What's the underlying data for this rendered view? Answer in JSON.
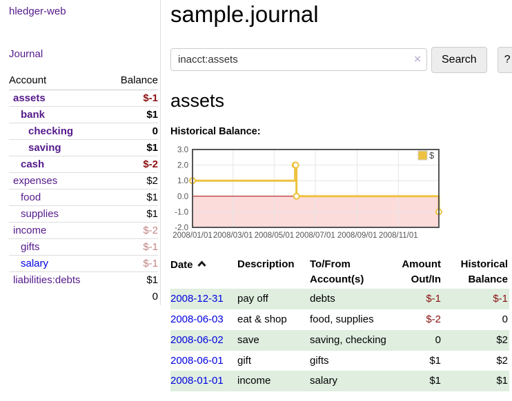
{
  "sidebar": {
    "app_title": "hledger-web",
    "nav": {
      "journal_label": "Journal"
    },
    "accounts_table": {
      "headers": {
        "account": "Account",
        "balance": "Balance"
      },
      "rows": [
        {
          "name": "assets",
          "level": 0,
          "bold": true,
          "balance": "$-1",
          "balance_class": "neg-strong"
        },
        {
          "name": "bank",
          "level": 1,
          "bold": true,
          "balance": "$1",
          "balance_class": "pos"
        },
        {
          "name": "checking",
          "level": 2,
          "bold": true,
          "balance": "0",
          "balance_class": "pos"
        },
        {
          "name": "saving",
          "level": 2,
          "bold": true,
          "balance": "$1",
          "balance_class": "pos"
        },
        {
          "name": "cash",
          "level": 1,
          "bold": true,
          "balance": "$-2",
          "balance_class": "neg-strong"
        },
        {
          "name": "expenses",
          "level": 0,
          "bold": false,
          "balance": "$2",
          "balance_class": "pos"
        },
        {
          "name": "food",
          "level": 1,
          "bold": false,
          "balance": "$1",
          "balance_class": "pos"
        },
        {
          "name": "supplies",
          "level": 1,
          "bold": false,
          "balance": "$1",
          "balance_class": "pos"
        },
        {
          "name": "income",
          "level": 0,
          "bold": false,
          "balance": "$-2",
          "balance_class": "neg-soft"
        },
        {
          "name": "gifts",
          "level": 1,
          "bold": false,
          "balance": "$-1",
          "balance_class": "neg-soft"
        },
        {
          "name": "salary",
          "level": 1,
          "bold": false,
          "balance": "$-1",
          "balance_class": "neg-soft",
          "link_color": "blue"
        },
        {
          "name": "liabilities:debts",
          "level": 0,
          "bold": false,
          "balance": "$1",
          "balance_class": "pos"
        }
      ],
      "total": "0"
    }
  },
  "header": {
    "title": "sample.journal"
  },
  "search": {
    "value": "inacct:assets",
    "clear_icon": "×",
    "search_button": "Search",
    "help_button": "?"
  },
  "main": {
    "account_heading": "assets",
    "chart_heading": "Historical Balance:"
  },
  "chart_data": {
    "type": "line",
    "step": true,
    "title": "Historical Balance",
    "series": [
      {
        "name": "$",
        "color": "#edc240",
        "points": [
          {
            "date": "2008-01-01",
            "day": 0,
            "value": 1
          },
          {
            "date": "2008-06-01",
            "day": 152,
            "value": 2
          },
          {
            "date": "2008-06-02",
            "day": 153,
            "value": 2
          },
          {
            "date": "2008-06-03",
            "day": 154,
            "value": 0
          },
          {
            "date": "2008-12-31",
            "day": 365,
            "value": -1
          }
        ]
      }
    ],
    "x_range_days": [
      0,
      365
    ],
    "x_ticks": [
      {
        "label": "2008/01/01",
        "day": 0
      },
      {
        "label": "2008/03/01",
        "day": 60
      },
      {
        "label": "2008/05/01",
        "day": 121
      },
      {
        "label": "2008/07/01",
        "day": 182
      },
      {
        "label": "2008/09/01",
        "day": 244
      },
      {
        "label": "2008/11/01",
        "day": 305
      }
    ],
    "y_ticks": [
      "3.0",
      "2.0",
      "1.0",
      "0.0",
      "-1.0",
      "-2.0"
    ],
    "ylim": [
      -2,
      3
    ],
    "grid": true,
    "legend": {
      "label": "$",
      "position": "top-right"
    },
    "colors": {
      "line": "#edc240",
      "marker_fill": "#ffffff",
      "negative_fill": "#fcdbdb",
      "zero_line": "#a40000",
      "grid": "#e6e6e6",
      "border": "#545454",
      "axis_text": "#545454"
    }
  },
  "transactions": {
    "headers": {
      "date": "Date",
      "description": "Description",
      "accounts": "To/From Account(s)",
      "amount": "Amount Out/In",
      "balance": "Historical Balance"
    },
    "rows": [
      {
        "date": "2008-12-31",
        "description": "pay off",
        "accounts": "debts",
        "amount": "$-1",
        "balance": "$-1"
      },
      {
        "date": "2008-06-03",
        "description": "eat & shop",
        "accounts": "food, supplies",
        "amount": "$-2",
        "balance": "0"
      },
      {
        "date": "2008-06-02",
        "description": "save",
        "accounts": "saving, checking",
        "amount": "0",
        "balance": "$2"
      },
      {
        "date": "2008-06-01",
        "description": "gift",
        "accounts": "gifts",
        "amount": "$1",
        "balance": "$2"
      },
      {
        "date": "2008-01-01",
        "description": "income",
        "accounts": "salary",
        "amount": "$1",
        "balance": "$1"
      }
    ]
  }
}
